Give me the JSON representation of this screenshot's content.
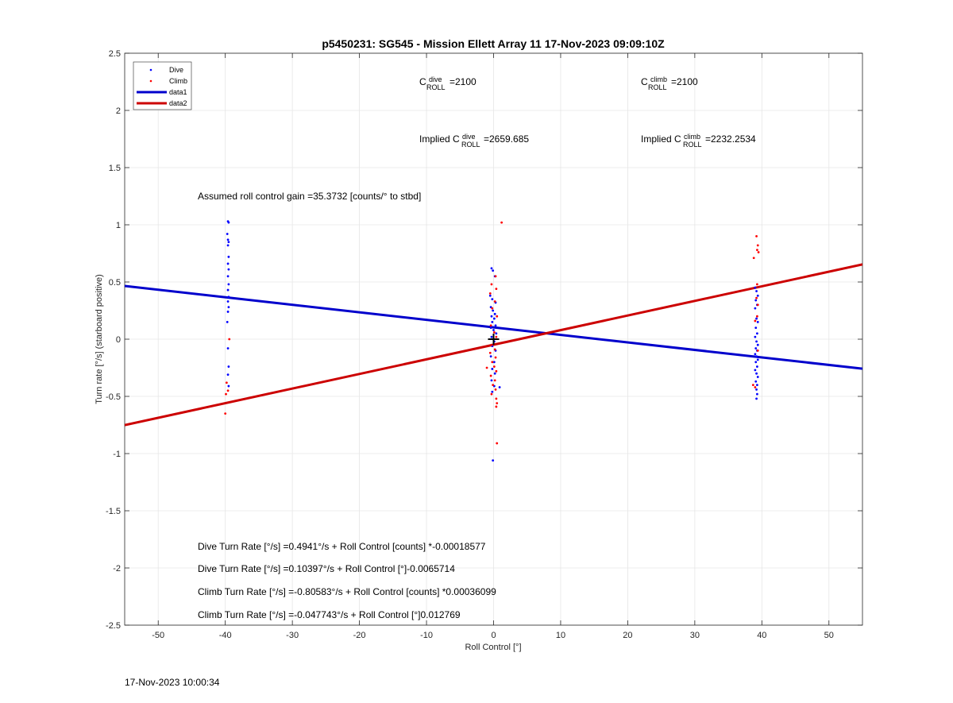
{
  "footer_timestamp": "17-Nov-2023 10:00:34",
  "chart_data": {
    "type": "scatter",
    "title": "p5450231: SG545 - Mission Ellett Array 11 17-Nov-2023 09:09:10Z",
    "xlabel": "Roll Control [°]",
    "ylabel": "Turn rate [°/s] (starboard positive)",
    "xlim": [
      -55,
      55
    ],
    "ylim": [
      -2.5,
      2.5
    ],
    "xticks": [
      -50,
      -40,
      -30,
      -20,
      -10,
      0,
      10,
      20,
      30,
      40,
      50
    ],
    "yticks": [
      -2.5,
      -2,
      -1.5,
      -1,
      -0.5,
      0,
      0.5,
      1,
      1.5,
      2,
      2.5
    ],
    "grid": true,
    "legend_position": "top-left",
    "colors": {
      "dive": "#0000ff",
      "climb": "#ff0000",
      "data1": "#0000cc",
      "data2": "#cc0000"
    },
    "series": [
      {
        "name": "Dive",
        "kind": "points",
        "points": [
          [
            -39.6,
            1.03
          ],
          [
            -39.5,
            1.02
          ],
          [
            -39.7,
            0.92
          ],
          [
            -39.6,
            0.87
          ],
          [
            -39.5,
            0.85
          ],
          [
            -39.6,
            0.82
          ],
          [
            -39.5,
            0.72
          ],
          [
            -39.6,
            0.66
          ],
          [
            -39.5,
            0.61
          ],
          [
            -39.6,
            0.55
          ],
          [
            -39.5,
            0.48
          ],
          [
            -39.6,
            0.43
          ],
          [
            -39.5,
            0.37
          ],
          [
            -39.6,
            0.33
          ],
          [
            -39.5,
            0.28
          ],
          [
            -39.6,
            0.24
          ],
          [
            -39.7,
            0.15
          ],
          [
            -39.6,
            -0.08
          ],
          [
            -39.5,
            -0.24
          ],
          [
            -39.6,
            -0.31
          ],
          [
            -39.5,
            -0.41
          ],
          [
            -0.3,
            0.62
          ],
          [
            -0.1,
            0.6
          ],
          [
            0.2,
            0.55
          ],
          [
            -0.5,
            0.38
          ],
          [
            -0.2,
            0.35
          ],
          [
            0.3,
            0.32
          ],
          [
            -0.4,
            0.28
          ],
          [
            -0.1,
            0.25
          ],
          [
            0.2,
            0.22
          ],
          [
            -0.3,
            0.2
          ],
          [
            0.1,
            0.18
          ],
          [
            -0.2,
            0.15
          ],
          [
            0.3,
            0.12
          ],
          [
            -0.4,
            0.1
          ],
          [
            0.0,
            0.08
          ],
          [
            0.4,
            0.05
          ],
          [
            -0.3,
            0.02
          ],
          [
            0.1,
            -0.02
          ],
          [
            -0.2,
            -0.06
          ],
          [
            0.3,
            -0.1
          ],
          [
            -0.4,
            -0.15
          ],
          [
            0.1,
            -0.2
          ],
          [
            -0.2,
            -0.26
          ],
          [
            0.2,
            -0.3
          ],
          [
            -0.3,
            -0.36
          ],
          [
            0.1,
            -0.41
          ],
          [
            -0.2,
            -0.46
          ],
          [
            0.9,
            -0.42
          ],
          [
            -0.1,
            -1.06
          ],
          [
            39.0,
            0.45
          ],
          [
            39.2,
            0.42
          ],
          [
            39.4,
            0.38
          ],
          [
            39.1,
            0.34
          ],
          [
            39.3,
            0.3
          ],
          [
            39.0,
            0.27
          ],
          [
            39.2,
            0.18
          ],
          [
            39.4,
            0.15
          ],
          [
            39.1,
            0.1
          ],
          [
            39.3,
            0.05
          ],
          [
            39.0,
            0.02
          ],
          [
            39.2,
            -0.02
          ],
          [
            39.4,
            -0.05
          ],
          [
            39.1,
            -0.08
          ],
          [
            39.3,
            -0.1
          ],
          [
            39.0,
            -0.13
          ],
          [
            39.2,
            -0.15
          ],
          [
            39.4,
            -0.18
          ],
          [
            39.1,
            -0.2
          ],
          [
            39.3,
            -0.24
          ],
          [
            39.0,
            -0.27
          ],
          [
            39.2,
            -0.3
          ],
          [
            39.4,
            -0.33
          ],
          [
            39.1,
            -0.37
          ],
          [
            39.3,
            -0.4
          ],
          [
            39.2,
            -0.44
          ],
          [
            39.3,
            -0.48
          ],
          [
            39.2,
            -0.52
          ]
        ]
      },
      {
        "name": "Climb",
        "kind": "points",
        "points": [
          [
            -39.4,
            0.0
          ],
          [
            -39.8,
            -0.38
          ],
          [
            -39.6,
            -0.45
          ],
          [
            -39.9,
            -0.48
          ],
          [
            -40.0,
            -0.65
          ],
          [
            1.2,
            1.02
          ],
          [
            0.3,
            0.55
          ],
          [
            -0.3,
            0.48
          ],
          [
            0.4,
            0.44
          ],
          [
            -0.5,
            0.4
          ],
          [
            0.2,
            0.33
          ],
          [
            -0.2,
            0.27
          ],
          [
            0.5,
            0.2
          ],
          [
            -0.4,
            0.12
          ],
          [
            0.1,
            0.06
          ],
          [
            0.4,
            0.02
          ],
          [
            -0.3,
            -0.05
          ],
          [
            0.2,
            -0.09
          ],
          [
            -0.5,
            -0.12
          ],
          [
            0.3,
            -0.16
          ],
          [
            -0.2,
            -0.2
          ],
          [
            0.1,
            -0.24
          ],
          [
            -1.0,
            -0.25
          ],
          [
            0.4,
            -0.28
          ],
          [
            -0.4,
            -0.32
          ],
          [
            0.2,
            -0.36
          ],
          [
            -0.1,
            -0.4
          ],
          [
            0.3,
            -0.44
          ],
          [
            -0.3,
            -0.48
          ],
          [
            0.4,
            -0.52
          ],
          [
            0.5,
            -0.56
          ],
          [
            0.4,
            -0.59
          ],
          [
            0.5,
            -0.91
          ],
          [
            39.2,
            0.9
          ],
          [
            39.4,
            0.82
          ],
          [
            39.3,
            0.78
          ],
          [
            39.5,
            0.76
          ],
          [
            38.8,
            0.71
          ],
          [
            39.3,
            0.48
          ],
          [
            39.2,
            0.36
          ],
          [
            39.4,
            0.3
          ],
          [
            39.3,
            0.2
          ],
          [
            39.0,
            0.16
          ],
          [
            39.4,
            -0.1
          ],
          [
            38.7,
            -0.4
          ],
          [
            39.0,
            -0.42
          ]
        ]
      },
      {
        "name": "data1",
        "kind": "line",
        "x": [
          -55,
          55
        ],
        "y": [
          0.465,
          -0.258
        ]
      },
      {
        "name": "data2",
        "kind": "line",
        "x": [
          -55,
          55
        ],
        "y": [
          -0.751,
          0.654
        ]
      }
    ],
    "markers": [
      {
        "type": "plus",
        "x": 0,
        "y": 0
      }
    ],
    "annotations": {
      "c_dive": {
        "base": "C",
        "sup": "dive",
        "sub": "ROLL",
        "text": " =2100"
      },
      "c_climb": {
        "base": "C",
        "sup": "climb",
        "sub": "ROLL",
        "text": " =2100"
      },
      "implied_dive": {
        "prefix": "Implied ",
        "base": "C",
        "sup": "dive",
        "sub": "ROLL",
        "text": " =2659.685"
      },
      "implied_climb": {
        "prefix": "Implied ",
        "base": "C",
        "sup": "climb",
        "sub": "ROLL",
        "text": " =2232.2534"
      },
      "gain": "Assumed roll control gain =35.3732 [counts/° to stbd]",
      "eq1": "Dive Turn Rate [°/s] =0.4941°/s + Roll Control [counts] *-0.00018577",
      "eq2": "Dive Turn Rate [°/s] =0.10397°/s + Roll Control [°]-0.0065714",
      "eq3": "Climb Turn Rate [°/s] =-0.80583°/s + Roll Control [counts] *0.00036099",
      "eq4": "Climb Turn Rate [°/s] =-0.047743°/s + Roll Control [°]0.012769"
    }
  }
}
